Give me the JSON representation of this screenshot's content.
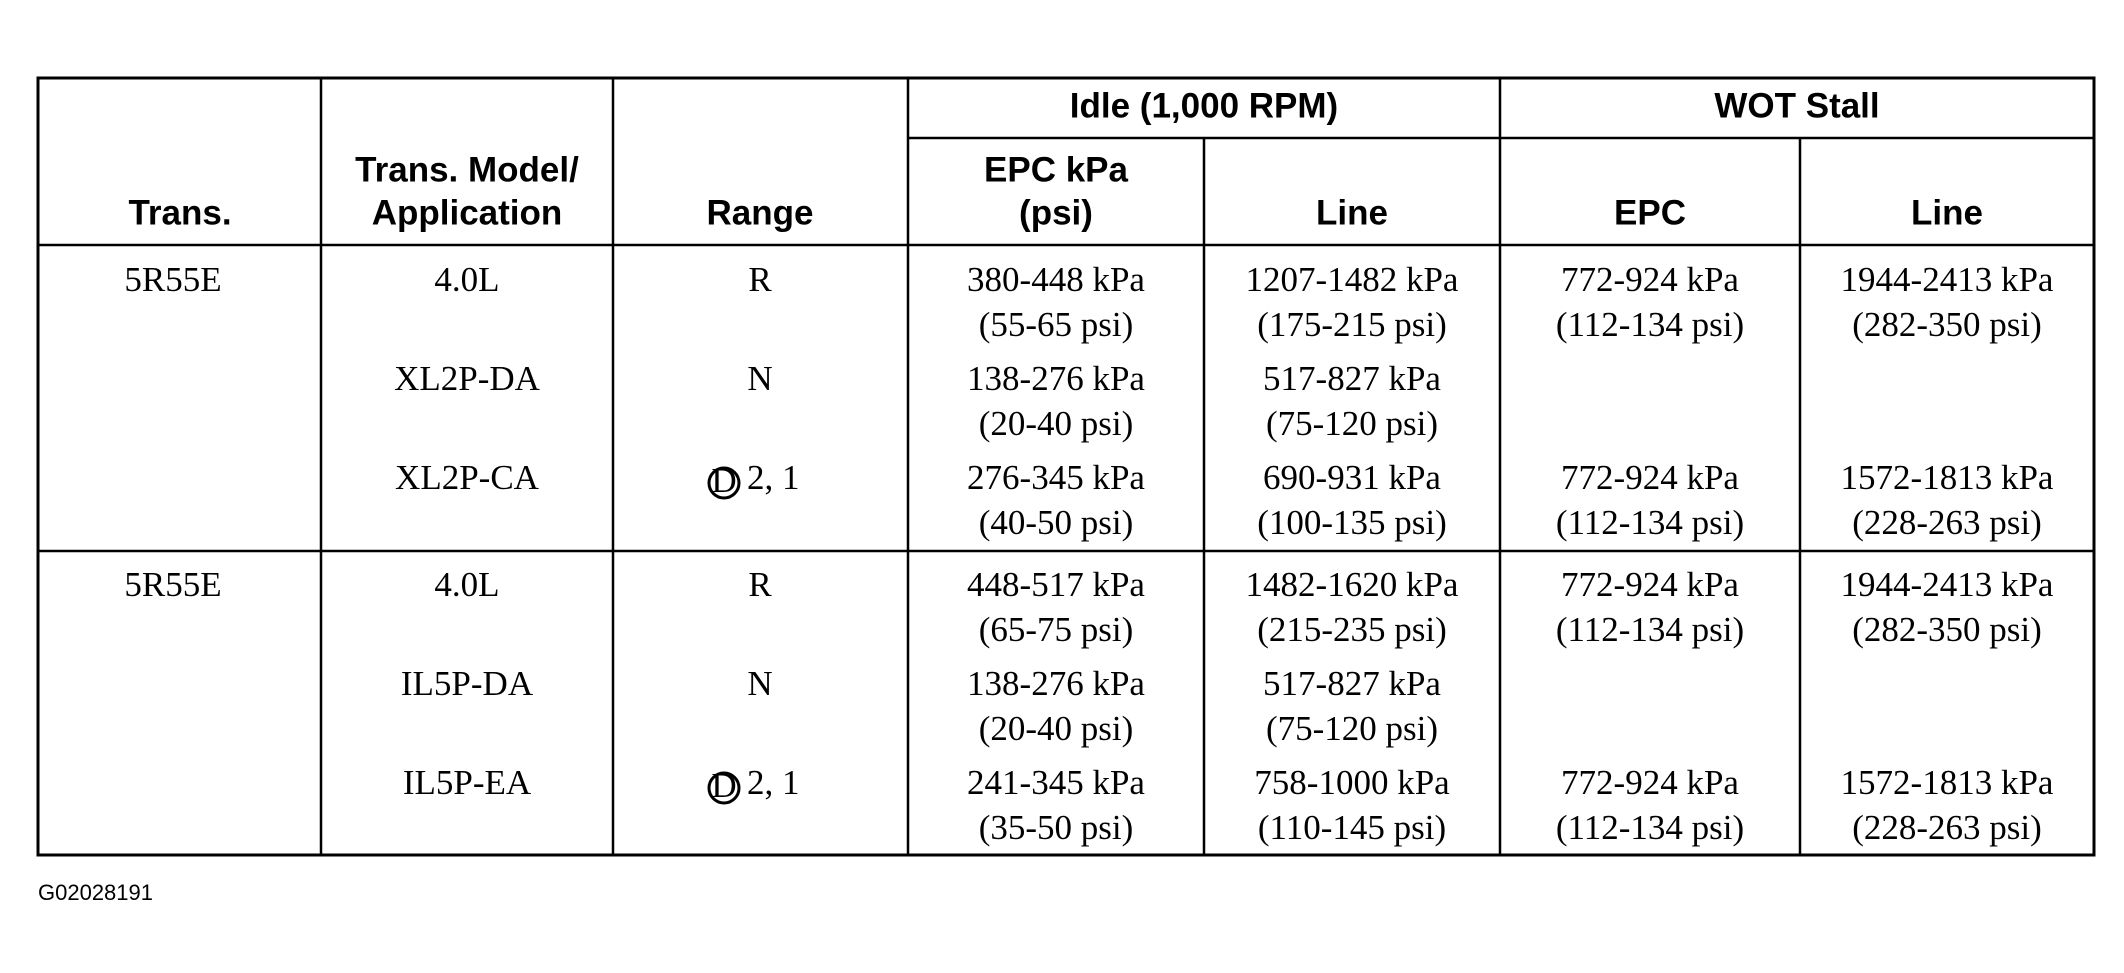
{
  "header": {
    "trans": "Trans.",
    "model": [
      "Trans. Model/",
      "Application"
    ],
    "range": "Range",
    "idle": "Idle (1,000 RPM)",
    "wot": "WOT Stall",
    "idle_epc": [
      "EPC kPa",
      "(psi)"
    ],
    "idle_line": "Line",
    "wot_epc": "EPC",
    "wot_line": "Line"
  },
  "groups": [
    {
      "trans": "5R55E",
      "rows": [
        {
          "model": "4.0L",
          "range": "R",
          "idle_epc": [
            "380-448 kPa",
            "(55-65 psi)"
          ],
          "idle_line": [
            "1207-1482 kPa",
            "(175-215 psi)"
          ],
          "wot_epc": [
            "772-924 kPa",
            "(112-134 psi)"
          ],
          "wot_line": [
            "1944-2413 kPa",
            "(282-350 psi)"
          ]
        },
        {
          "model": "XL2P-DA",
          "range": "N",
          "idle_epc": [
            "138-276 kPa",
            "(20-40 psi)"
          ],
          "idle_line": [
            "517-827 kPa",
            "(75-120 psi)"
          ]
        },
        {
          "model": "XL2P-CA",
          "range_circled": "D",
          "range": "2, 1",
          "idle_epc": [
            "276-345 kPa",
            "(40-50 psi)"
          ],
          "idle_line": [
            "690-931 kPa",
            "(100-135 psi)"
          ],
          "wot_epc": [
            "772-924 kPa",
            "(112-134 psi)"
          ],
          "wot_line": [
            "1572-1813 kPa",
            "(228-263 psi)"
          ]
        }
      ]
    },
    {
      "trans": "5R55E",
      "rows": [
        {
          "model": "4.0L",
          "range": "R",
          "idle_epc": [
            "448-517 kPa",
            "(65-75 psi)"
          ],
          "idle_line": [
            "1482-1620 kPa",
            "(215-235 psi)"
          ],
          "wot_epc": [
            "772-924 kPa",
            "(112-134 psi)"
          ],
          "wot_line": [
            "1944-2413 kPa",
            "(282-350 psi)"
          ]
        },
        {
          "model": "IL5P-DA",
          "range": "N",
          "idle_epc": [
            "138-276 kPa",
            "(20-40 psi)"
          ],
          "idle_line": [
            "517-827 kPa",
            "(75-120 psi)"
          ]
        },
        {
          "model": "IL5P-EA",
          "range_circled": "D",
          "range": "2, 1",
          "idle_epc": [
            "241-345 kPa",
            "(35-50 psi)"
          ],
          "idle_line": [
            "758-1000 kPa",
            "(110-145 psi)"
          ],
          "wot_epc": [
            "772-924 kPa",
            "(112-134 psi)"
          ],
          "wot_line": [
            "1572-1813 kPa",
            "(228-263 psi)"
          ]
        }
      ]
    }
  ],
  "figure_id": "G02028191"
}
